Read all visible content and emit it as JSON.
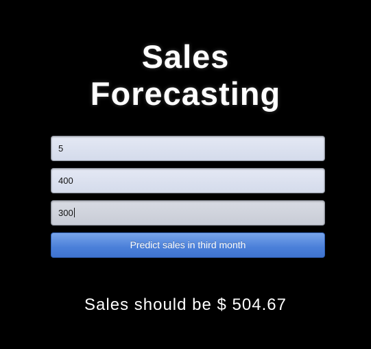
{
  "header": {
    "title_line1": "Sales",
    "title_line2": "Forecasting"
  },
  "form": {
    "inputs": [
      {
        "value": "5"
      },
      {
        "value": "400"
      },
      {
        "value": "300"
      }
    ],
    "submit_label": "Predict sales in third month"
  },
  "result": {
    "text": "Sales should be $ 504.67"
  },
  "colors": {
    "background": "#000000",
    "button": "#4a7fd9",
    "input": "#dde2f0"
  }
}
